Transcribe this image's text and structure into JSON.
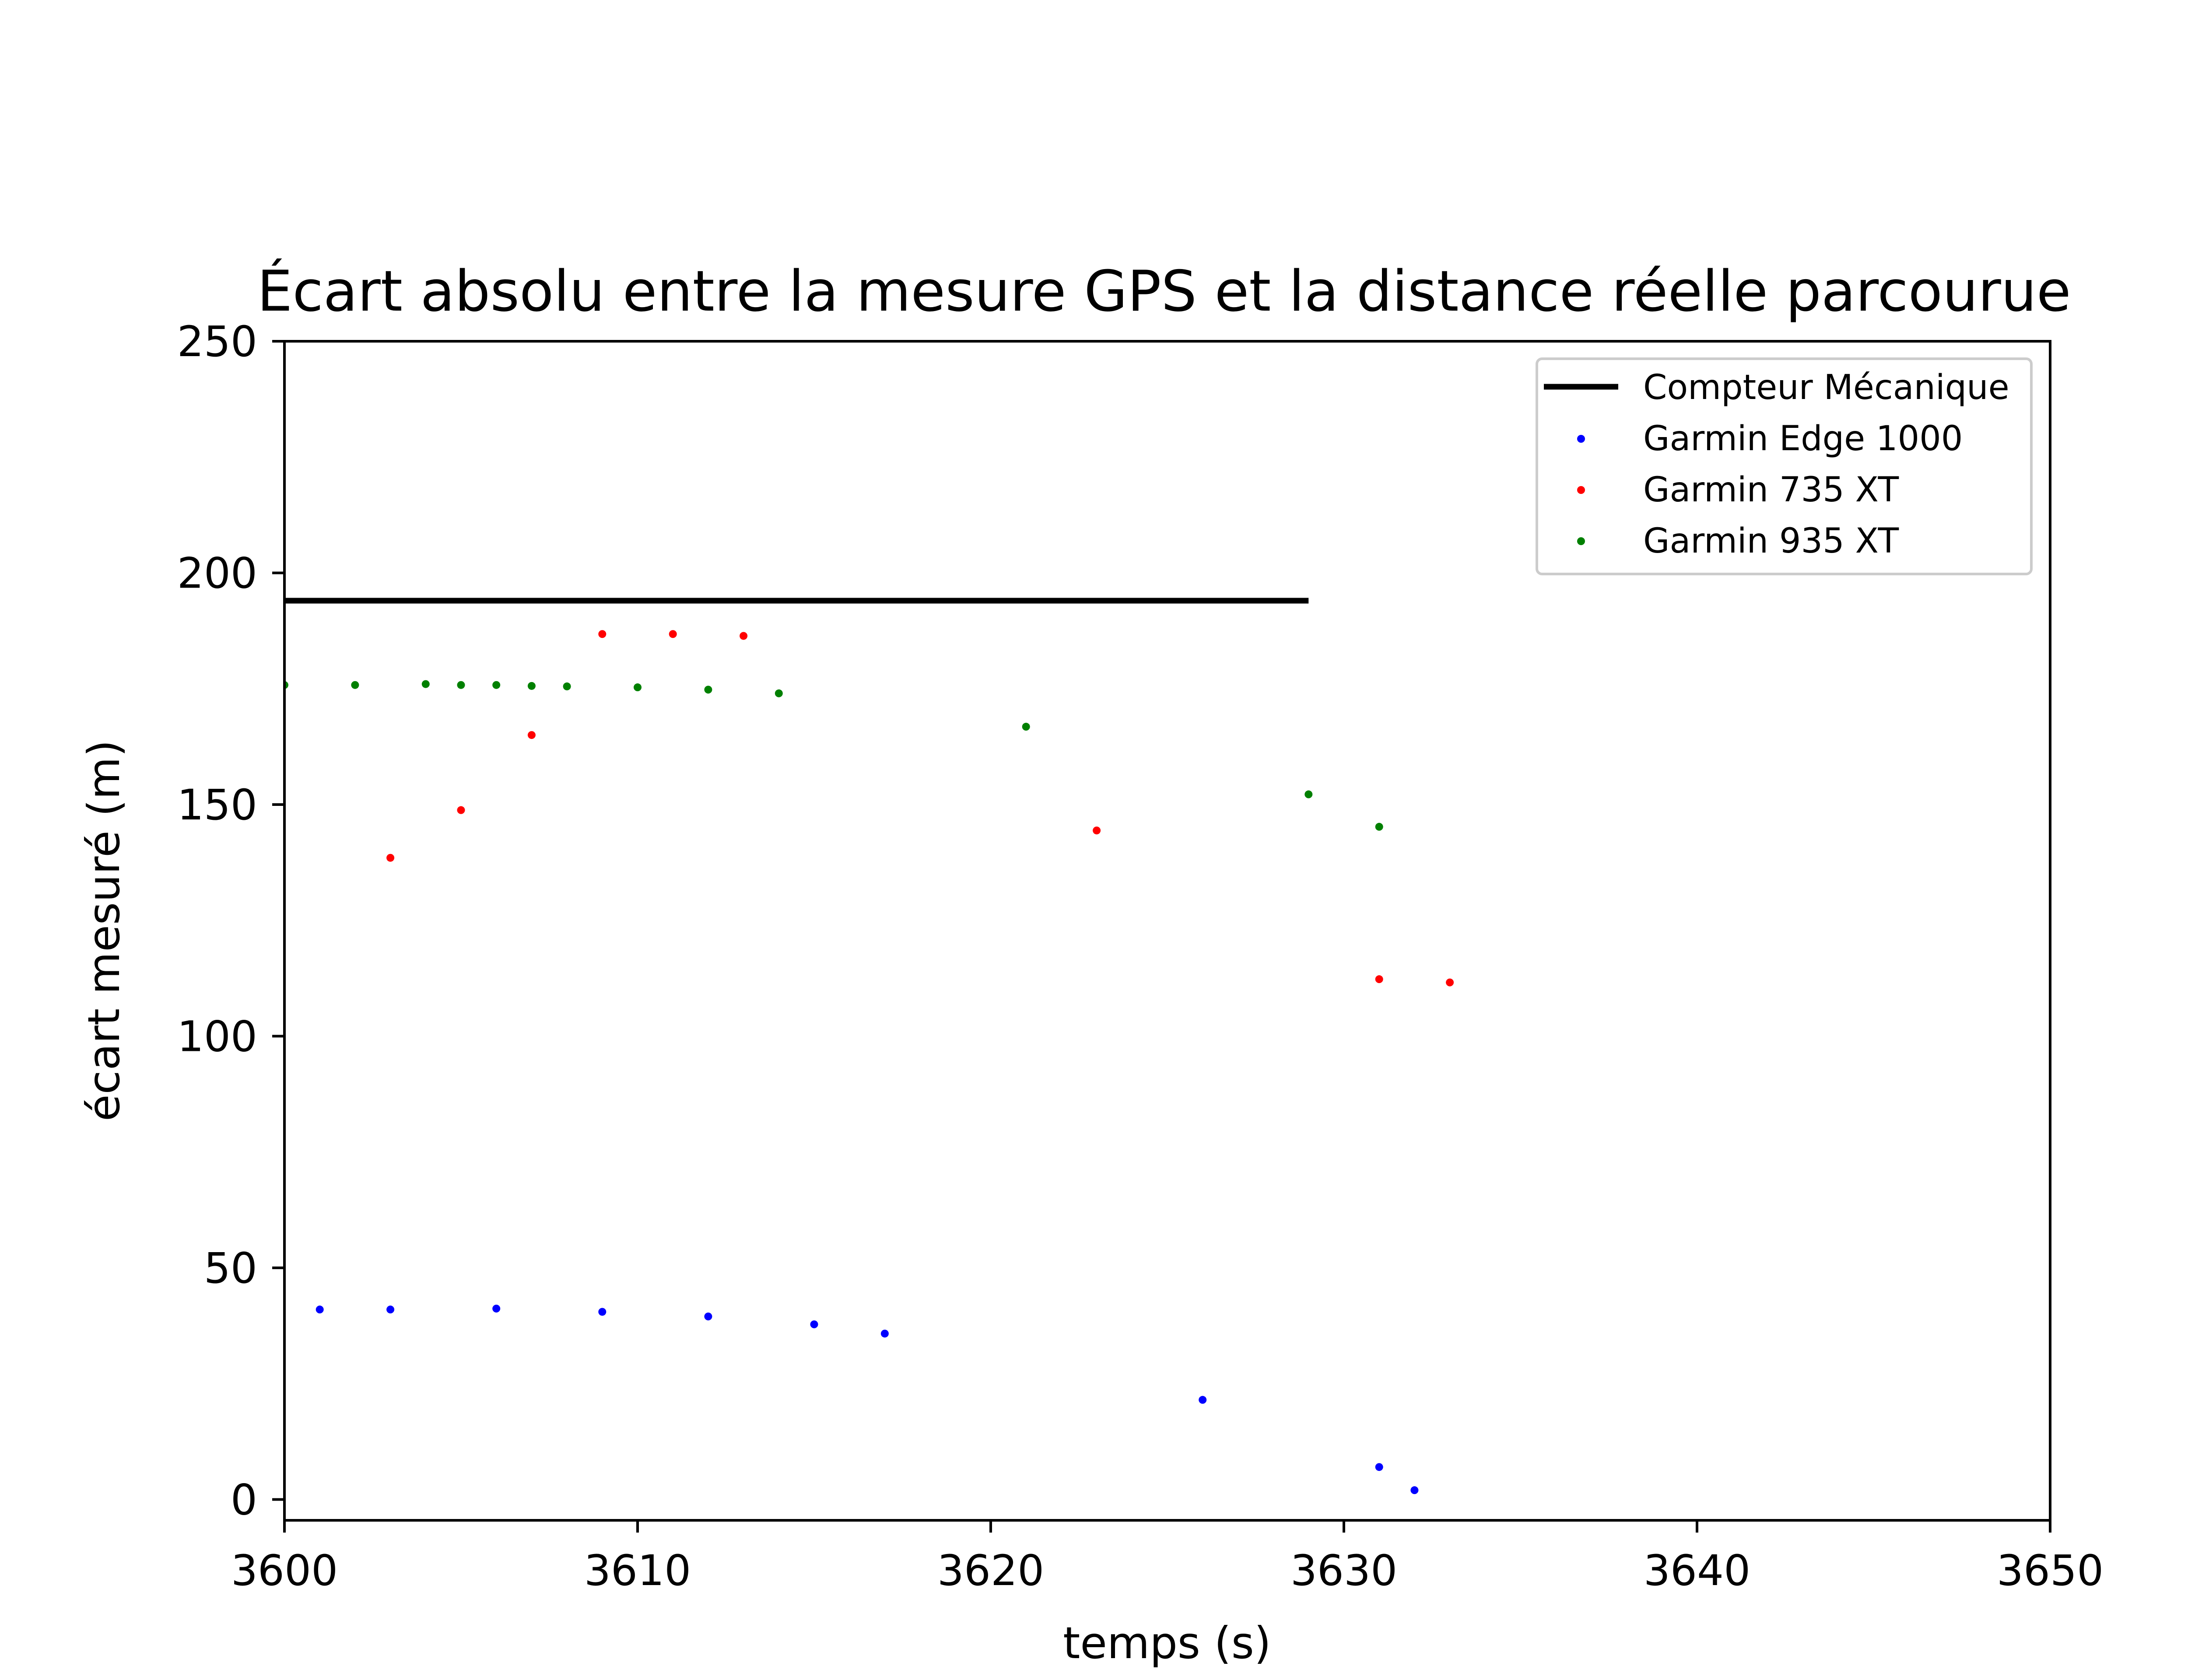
{
  "chart_data": {
    "type": "scatter",
    "title": "Écart absolu entre la mesure GPS et la distance réelle parcourue",
    "xlabel": "temps (s)",
    "ylabel": "écart mesuré (m)",
    "xlim": [
      3600,
      3650
    ],
    "ylim": [
      -4.5,
      250
    ],
    "xticks": [
      "3600",
      "3610",
      "3620",
      "3630",
      "3640",
      "3650"
    ],
    "yticks": [
      "0",
      "50",
      "100",
      "150",
      "200",
      "250"
    ],
    "grid": false,
    "legend_position": "top-right",
    "series": [
      {
        "name": "Compteur Mécanique",
        "kind": "line",
        "color": "#000000",
        "x": [
          3600,
          3629
        ],
        "y": [
          194,
          194
        ]
      },
      {
        "name": "Garmin Edge 1000",
        "kind": "scatter",
        "color": "#0000ff",
        "x": [
          3601,
          3603,
          3606,
          3609,
          3612,
          3615,
          3617,
          3626,
          3631,
          3632
        ],
        "y": [
          41,
          41,
          41.2,
          40.5,
          39.5,
          37.8,
          35.8,
          21.5,
          7,
          2
        ]
      },
      {
        "name": "Garmin 735 XT",
        "kind": "scatter",
        "color": "#ff0000",
        "x": [
          3603,
          3605,
          3607,
          3609,
          3611,
          3613,
          3623,
          3631,
          3633
        ],
        "y": [
          138.5,
          148.8,
          165,
          186.8,
          186.8,
          186.4,
          144.4,
          112.3,
          111.6
        ]
      },
      {
        "name": "Garmin 935 XT",
        "kind": "scatter",
        "color": "#008000",
        "x": [
          3600,
          3602,
          3604,
          3605,
          3606,
          3607,
          3608,
          3610,
          3612,
          3614,
          3621,
          3629,
          3631
        ],
        "y": [
          175.8,
          175.8,
          176,
          175.8,
          175.8,
          175.6,
          175.5,
          175.3,
          174.8,
          174,
          166.8,
          152.2,
          145.2
        ]
      }
    ]
  }
}
